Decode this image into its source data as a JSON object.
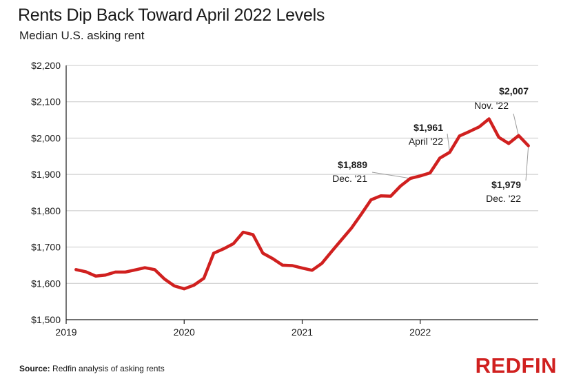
{
  "chart_data": {
    "type": "line",
    "title": "Rents Dip Back Toward April 2022 Levels",
    "subtitle": "Median U.S. asking rent",
    "xlabel": "",
    "ylabel": "",
    "ylim": [
      1500,
      2200
    ],
    "xlim": [
      "2019-01",
      "2022-12"
    ],
    "y_ticks": [
      "$1,500",
      "$1,600",
      "$1,700",
      "$1,800",
      "$1,900",
      "$2,000",
      "$2,100",
      "$2,200"
    ],
    "y_tick_values": [
      1500,
      1600,
      1700,
      1800,
      1900,
      2000,
      2100,
      2200
    ],
    "x_ticks": [
      "2019",
      "2020",
      "2021",
      "2022"
    ],
    "grid": "horizontal",
    "series": [
      {
        "color": "#d0201f",
        "x": [
          "2019-02",
          "2019-03",
          "2019-04",
          "2019-05",
          "2019-06",
          "2019-07",
          "2019-08",
          "2019-09",
          "2019-10",
          "2019-11",
          "2019-12",
          "2020-01",
          "2020-02",
          "2020-03",
          "2020-04",
          "2020-05",
          "2020-06",
          "2020-07",
          "2020-08",
          "2020-09",
          "2020-10",
          "2020-11",
          "2020-12",
          "2021-01",
          "2021-02",
          "2021-03",
          "2021-04",
          "2021-05",
          "2021-06",
          "2021-07",
          "2021-08",
          "2021-09",
          "2021-10",
          "2021-11",
          "2021-12",
          "2022-01",
          "2022-02",
          "2022-03",
          "2022-04",
          "2022-05",
          "2022-06",
          "2022-07",
          "2022-08",
          "2022-09",
          "2022-10",
          "2022-11",
          "2022-12"
        ],
        "values": [
          1638,
          1632,
          1620,
          1623,
          1631,
          1631,
          1637,
          1643,
          1638,
          1612,
          1593,
          1585,
          1595,
          1614,
          1683,
          1695,
          1709,
          1741,
          1734,
          1683,
          1668,
          1650,
          1649,
          1642,
          1636,
          1655,
          1688,
          1720,
          1752,
          1790,
          1830,
          1841,
          1840,
          1868,
          1889,
          1896,
          1904,
          1945,
          1961,
          2006,
          2018,
          2031,
          2053,
          2002,
          1985,
          2007,
          1979
        ]
      }
    ],
    "annotations": [
      {
        "value": "$2,007",
        "date": "Nov. '22"
      },
      {
        "value": "$1,961",
        "date": "April '22"
      },
      {
        "value": "$1,889",
        "date": "Dec. '21"
      },
      {
        "value": "$1,979",
        "date": "Dec. '22"
      }
    ]
  },
  "source": {
    "label": "Source:",
    "text": " Redfin analysis of asking rents"
  },
  "brand": {
    "name": "REDFIN",
    "color": "#d0201f"
  }
}
